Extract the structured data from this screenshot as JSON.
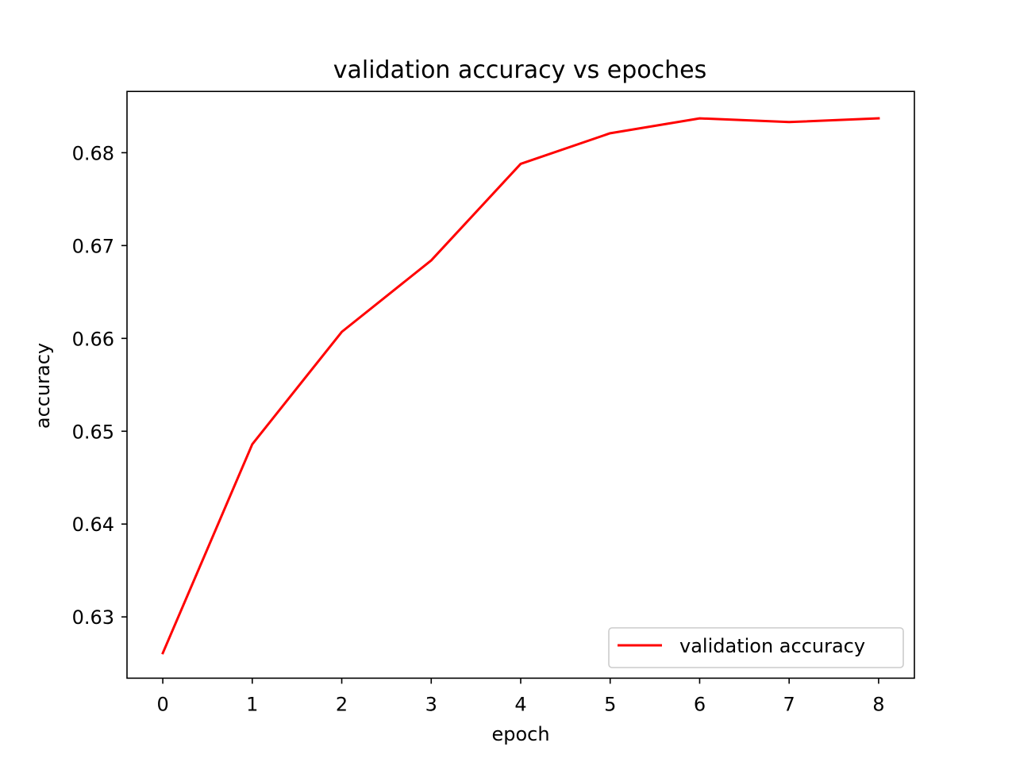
{
  "chart_data": {
    "type": "line",
    "title": "validation accuracy vs epoches",
    "xlabel": "epoch",
    "ylabel": "accuracy",
    "x": [
      0,
      1,
      2,
      3,
      4,
      5,
      6,
      7,
      8
    ],
    "series": [
      {
        "name": "validation accuracy",
        "color": "#ff0000",
        "values": [
          0.6261,
          0.6486,
          0.6607,
          0.6684,
          0.6788,
          0.6821,
          0.6837,
          0.6833,
          0.6837
        ]
      }
    ],
    "xlim": [
      -0.4,
      8.4
    ],
    "ylim": [
      0.6234,
      0.6866
    ],
    "xticks": [
      "0",
      "1",
      "2",
      "3",
      "4",
      "5",
      "6",
      "7",
      "8"
    ],
    "yticks": [
      "0.63",
      "0.64",
      "0.65",
      "0.66",
      "0.67",
      "0.68"
    ],
    "grid": false,
    "legend_position": "lower-right"
  }
}
